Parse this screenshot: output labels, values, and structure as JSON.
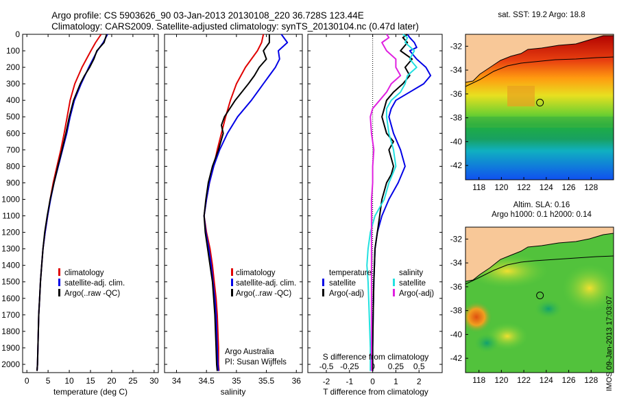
{
  "title": {
    "line1": "Argo profile: CS 5903626_90 03-Jan-2013 20130108_220 36.728S 123.44E",
    "line2": "Climatology: CARS2009. Satellite-adjusted climatology: synTS_20130104.nc (0.47d later)"
  },
  "side_note": "IMOS 09-Jan-2013 17:03:07",
  "colors": {
    "climatology": "#e00000",
    "satellite": "#0000e6",
    "argo": "#000000",
    "cyan": "#22e0e0",
    "magenta": "#e020e0",
    "land": "#f8c898"
  },
  "chart_data": [
    {
      "id": "temperature",
      "type": "line",
      "xlabel": "temperature (deg C)",
      "ylabel": "",
      "xlim": [
        -1,
        31
      ],
      "ylim": [
        2050,
        0
      ],
      "xticks": [
        "0",
        "5",
        "10",
        "15",
        "20",
        "25",
        "30"
      ],
      "xtick_values": [
        0,
        5,
        10,
        15,
        20,
        25,
        30
      ],
      "yticks": [
        "0",
        "100",
        "200",
        "300",
        "400",
        "500",
        "600",
        "700",
        "800",
        "900",
        "1000",
        "1100",
        "1200",
        "1300",
        "1400",
        "1500",
        "1600",
        "1700",
        "1800",
        "1900",
        "2000"
      ],
      "ytick_values": [
        0,
        100,
        200,
        300,
        400,
        500,
        600,
        700,
        800,
        900,
        1000,
        1100,
        1200,
        1300,
        1400,
        1500,
        1600,
        1700,
        1800,
        1900,
        2000
      ],
      "legend": [
        "climatology",
        "satellite-adj. clim.",
        "Argo(..raw -QC)"
      ],
      "series": [
        {
          "name": "climatology",
          "color": "#e00000",
          "depth": [
            0,
            50,
            100,
            200,
            300,
            400,
            500,
            600,
            700,
            800,
            900,
            1000,
            1100,
            1200,
            1300,
            1400,
            1500,
            1600,
            1700,
            1800,
            1900,
            2000,
            2040
          ],
          "values": [
            17.5,
            16.2,
            15.1,
            13.0,
            11.3,
            10.2,
            9.5,
            8.8,
            8.0,
            7.1,
            6.2,
            5.5,
            4.9,
            4.3,
            3.8,
            3.5,
            3.2,
            3.0,
            2.8,
            2.7,
            2.6,
            2.5,
            2.4
          ]
        },
        {
          "name": "satellite-adj. clim.",
          "color": "#0000e6",
          "depth": [
            0,
            50,
            100,
            200,
            300,
            400,
            500,
            600,
            700,
            800,
            900,
            1000,
            1100,
            1200,
            1300,
            1400,
            1500,
            1600,
            1700,
            1800,
            1900,
            2000,
            2040
          ],
          "values": [
            19.0,
            18.0,
            16.6,
            14.6,
            12.8,
            11.2,
            10.2,
            9.4,
            8.4,
            7.4,
            6.4,
            5.6,
            4.9,
            4.3,
            3.8,
            3.5,
            3.2,
            3.0,
            2.8,
            2.7,
            2.6,
            2.5,
            2.4
          ]
        },
        {
          "name": "Argo(..raw -QC)",
          "color": "#000000",
          "depth": [
            0,
            50,
            100,
            150,
            200,
            250,
            300,
            400,
            500,
            600,
            700,
            800,
            900,
            1000,
            1100,
            1200,
            1300,
            1400,
            1500,
            1600,
            1700,
            1800,
            1900,
            2000,
            2040
          ],
          "values": [
            18.8,
            18.2,
            16.5,
            15.8,
            14.8,
            13.6,
            12.6,
            11.0,
            10.0,
            9.2,
            8.3,
            7.3,
            6.4,
            5.5,
            4.8,
            4.2,
            3.8,
            3.5,
            3.2,
            3.0,
            2.8,
            2.7,
            2.6,
            2.5,
            2.4
          ]
        }
      ]
    },
    {
      "id": "salinity",
      "type": "line",
      "xlabel": "salinity",
      "xlim": [
        33.8,
        36.1
      ],
      "ylim": [
        2050,
        0
      ],
      "xticks": [
        "34",
        "34.5",
        "35",
        "35.5",
        "36"
      ],
      "xtick_values": [
        34,
        34.5,
        35,
        35.5,
        36
      ],
      "legend": [
        "climatology",
        "satellite-adj. clim.",
        "Argo(..raw -QC)"
      ],
      "annotation": [
        "Argo Australia",
        "PI: Susan Wijffels"
      ],
      "series": [
        {
          "name": "climatology",
          "color": "#e00000",
          "depth": [
            0,
            50,
            100,
            200,
            300,
            400,
            500,
            600,
            700,
            800,
            900,
            1000,
            1100,
            1200,
            1300,
            1400,
            1500,
            1600,
            1700,
            1800,
            1900,
            2000,
            2040
          ],
          "values": [
            35.45,
            35.42,
            35.35,
            35.15,
            35.0,
            34.9,
            34.82,
            34.75,
            34.68,
            34.62,
            34.55,
            34.5,
            34.46,
            34.5,
            34.56,
            34.6,
            34.63,
            34.66,
            34.68,
            34.69,
            34.7,
            34.7,
            34.71
          ]
        },
        {
          "name": "satellite-adj. clim.",
          "color": "#0000e6",
          "depth": [
            0,
            50,
            100,
            150,
            200,
            250,
            300,
            400,
            500,
            600,
            700,
            800,
            900,
            1000,
            1100,
            1200,
            1300,
            1400,
            1500,
            1600,
            1700,
            1800,
            1900,
            2000,
            2040
          ],
          "values": [
            35.75,
            35.85,
            35.7,
            35.72,
            35.65,
            35.55,
            35.45,
            35.25,
            35.02,
            34.85,
            34.72,
            34.62,
            34.55,
            34.5,
            34.46,
            34.49,
            34.54,
            34.58,
            34.61,
            34.64,
            34.66,
            34.67,
            34.68,
            34.69,
            34.7
          ]
        },
        {
          "name": "Argo(..raw -QC)",
          "color": "#000000",
          "depth": [
            0,
            50,
            100,
            150,
            200,
            250,
            300,
            400,
            500,
            550,
            600,
            700,
            800,
            900,
            1000,
            1100,
            1200,
            1300,
            1400,
            1500,
            1600,
            1700,
            1800,
            1900,
            2000,
            2040
          ],
          "values": [
            35.55,
            35.55,
            35.45,
            35.5,
            35.38,
            35.3,
            35.2,
            34.98,
            34.8,
            34.75,
            34.78,
            34.7,
            34.6,
            34.53,
            34.49,
            34.46,
            34.48,
            34.52,
            34.56,
            34.6,
            34.62,
            34.64,
            34.65,
            34.66,
            34.67,
            34.68
          ]
        }
      ]
    },
    {
      "id": "difference",
      "type": "line",
      "xlabel": "T difference from climatology",
      "xlabel_top": "S difference from climatology",
      "xlim": [
        -2.8,
        3.0
      ],
      "ylim": [
        2050,
        0
      ],
      "xticks": [
        "-2",
        "-1",
        "0",
        "1",
        "2"
      ],
      "xtick_values": [
        -2,
        -1,
        0,
        1,
        2
      ],
      "xticks_secondary": [
        "-0.5",
        "-0.25",
        "0",
        "0.25",
        "0.5"
      ],
      "xtick_secondary_values": [
        -2,
        -1,
        0,
        1,
        2
      ],
      "legend_temperature": {
        "header": "temperature",
        "items": [
          "satellite",
          "Argo(-adj)"
        ]
      },
      "legend_salinity": {
        "header": "salinity",
        "items": [
          "satellite",
          "Argo(-adj)"
        ]
      },
      "series": [
        {
          "name": "temperature satellite",
          "color": "#0000e6",
          "depth": [
            0,
            20,
            50,
            80,
            100,
            150,
            200,
            250,
            300,
            350,
            400,
            450,
            500,
            600,
            700,
            800,
            900,
            1000,
            1100,
            1200,
            1300,
            1500,
            1700,
            1900,
            2040
          ],
          "values": [
            1.5,
            1.6,
            1.8,
            1.9,
            1.6,
            1.9,
            2.3,
            2.5,
            2.2,
            1.6,
            1.0,
            0.8,
            0.7,
            0.9,
            1.2,
            1.4,
            1.1,
            0.7,
            0.4,
            0.2,
            0.1,
            0.05,
            0.02,
            0.0,
            0.0
          ]
        },
        {
          "name": "temperature Argo(-adj)",
          "color": "#000000",
          "depth": [
            0,
            20,
            50,
            100,
            150,
            200,
            250,
            300,
            350,
            400,
            450,
            500,
            550,
            600,
            650,
            700,
            750,
            800,
            850,
            900,
            1000,
            1100,
            1200,
            1300,
            1500,
            1700,
            1900,
            2040
          ],
          "values": [
            1.5,
            1.3,
            1.5,
            1.2,
            1.7,
            1.4,
            1.6,
            1.3,
            0.9,
            0.6,
            0.5,
            0.4,
            0.5,
            0.6,
            0.9,
            0.7,
            0.8,
            0.9,
            0.8,
            0.6,
            0.4,
            0.3,
            0.2,
            0.1,
            0.05,
            0.02,
            0.0,
            0.0
          ]
        },
        {
          "name": "salinity satellite",
          "color": "#22e0e0",
          "depth": [
            0,
            20,
            50,
            100,
            150,
            200,
            250,
            300,
            350,
            400,
            450,
            500,
            600,
            700,
            800,
            900,
            1000,
            1100,
            1200,
            1300,
            1400,
            1500,
            1700,
            1900,
            2040
          ],
          "values": [
            1.3,
            1.5,
            1.4,
            1.8,
            1.6,
            1.9,
            1.5,
            1.4,
            1.2,
            0.8,
            0.6,
            0.6,
            0.7,
            0.9,
            1.0,
            0.7,
            0.5,
            0.1,
            -0.1,
            -0.2,
            -0.25,
            -0.2,
            -0.15,
            -0.1,
            -0.1
          ]
        },
        {
          "name": "salinity Argo(-adj)",
          "color": "#e020e0",
          "depth": [
            0,
            20,
            50,
            100,
            150,
            200,
            250,
            300,
            350,
            400,
            450,
            500,
            600,
            700,
            800,
            900,
            1000,
            1100,
            1200,
            1300,
            1400,
            1500,
            1700,
            1900,
            2040
          ],
          "values": [
            0.6,
            0.7,
            0.4,
            0.6,
            1.0,
            1.0,
            1.2,
            0.8,
            0.6,
            0.3,
            0.0,
            -0.1,
            -0.05,
            0.05,
            0.0,
            0.0,
            -0.05,
            -0.05,
            -0.05,
            -0.05,
            -0.05,
            -0.05,
            -0.05,
            -0.05,
            -0.05
          ]
        }
      ]
    },
    {
      "id": "sst_map",
      "type": "heatmap",
      "title": "sat. SST: 19.2 Argo: 18.8",
      "xticks": [
        "118",
        "120",
        "122",
        "124",
        "126",
        "128"
      ],
      "xtick_values": [
        118,
        120,
        122,
        124,
        126,
        128
      ],
      "yticks": [
        "-32",
        "-34",
        "-36",
        "-38",
        "-40",
        "-42"
      ],
      "ytick_values": [
        -32,
        -34,
        -36,
        -38,
        -40,
        -42
      ],
      "xlim": [
        116.8,
        130
      ],
      "ylim": [
        -43.2,
        -31
      ],
      "float_position": {
        "lon": 123.44,
        "lat": -36.728
      }
    },
    {
      "id": "sla_map",
      "type": "heatmap",
      "title_line1": "Altim. SLA: 0.16",
      "title_line2": "Argo h1000: 0.1 h2000: 0.14",
      "xticks": [
        "118",
        "120",
        "122",
        "124",
        "126",
        "128"
      ],
      "xtick_values": [
        118,
        120,
        122,
        124,
        126,
        128
      ],
      "yticks": [
        "-32",
        "-34",
        "-36",
        "-38",
        "-40",
        "-42"
      ],
      "ytick_values": [
        -32,
        -34,
        -36,
        -38,
        -40,
        -42
      ],
      "xlim": [
        116.8,
        130
      ],
      "ylim": [
        -43.2,
        -31
      ],
      "float_position": {
        "lon": 123.44,
        "lat": -36.728
      }
    }
  ]
}
